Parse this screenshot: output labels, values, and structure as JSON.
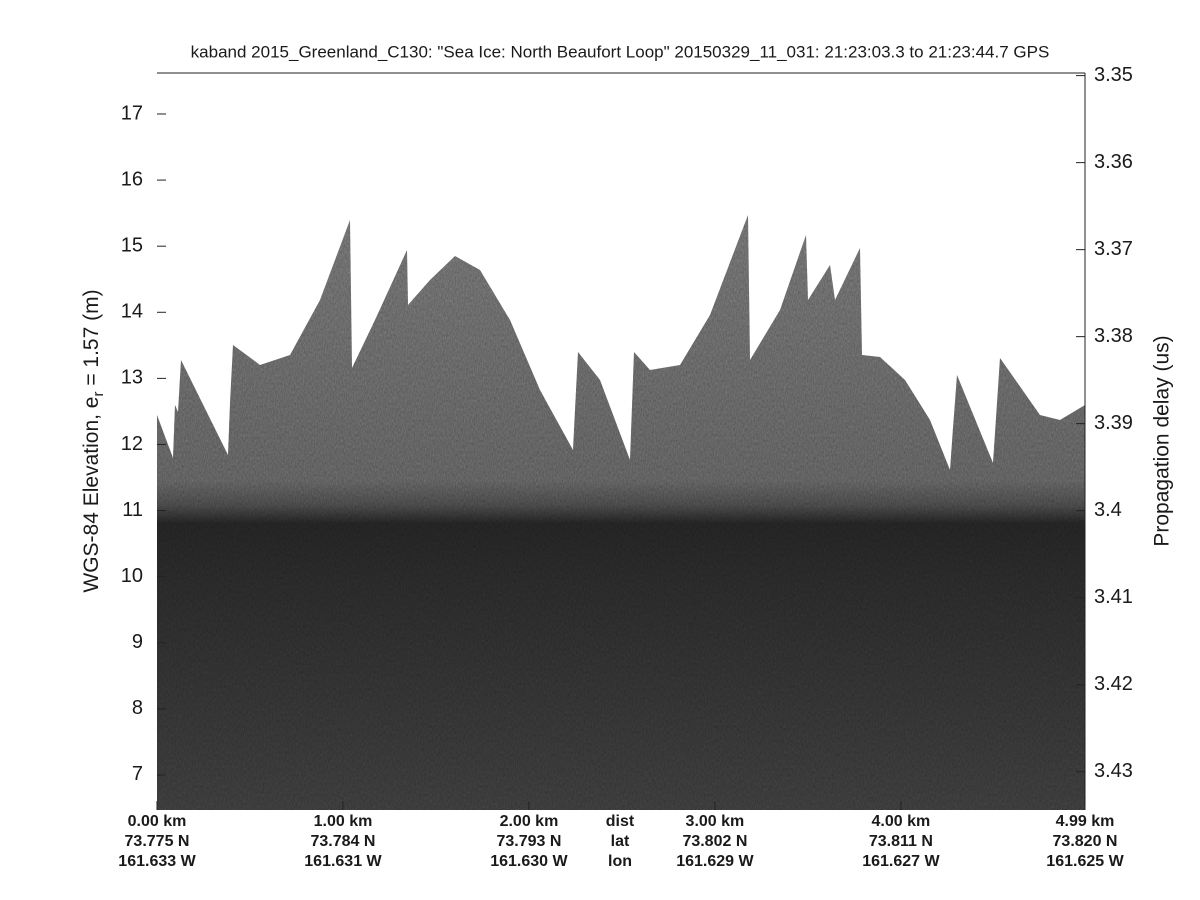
{
  "chart_data": {
    "type": "echogram",
    "title": "kaband 2015_Greenland_C130: \"Sea Ice: North Beaufort Loop\"  20150329_11_031: 21:23:03.3 to 21:23:44.7 GPS",
    "ylabel": [
      "WGS-84 Elevation, e",
      "r",
      " = 1.57 (m)"
    ],
    "y2label": "Propagation delay (us)",
    "ylim": [
      6.47,
      17.62
    ],
    "yticks": [
      7,
      8,
      9,
      10,
      11,
      12,
      13,
      14,
      15,
      16,
      17
    ],
    "y2lim": [
      3.4344,
      3.3497
    ],
    "y2ticks": [
      3.35,
      3.36,
      3.37,
      3.38,
      3.39,
      3.4,
      3.41,
      3.42,
      3.43
    ],
    "xlim": [
      0,
      4.99
    ],
    "xticks": [
      {
        "value": 0,
        "label": "0.00 km"
      },
      {
        "value": 1,
        "label": "1.00 km"
      },
      {
        "value": 2,
        "label": "2.00 km"
      },
      {
        "value": 3,
        "label": "3.00 km"
      },
      {
        "value": 4,
        "label": "4.00 km"
      },
      {
        "value": 4.99,
        "label": "4.99 km"
      }
    ],
    "lat_labels": [
      "73.775 N",
      "73.784 N",
      "73.793 N",
      "73.802 N",
      "73.811 N",
      "73.820 N"
    ],
    "lon_labels": [
      "161.633 W",
      "161.631 W",
      "161.630 W",
      "161.629 W",
      "161.627 W",
      "161.625 W"
    ],
    "row_names": [
      "dist",
      "lat",
      "lon"
    ]
  }
}
